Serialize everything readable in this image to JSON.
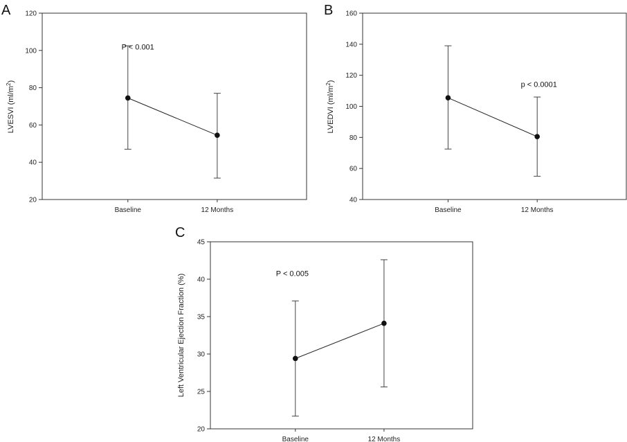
{
  "chart_data": [
    {
      "panel": "A",
      "type": "line",
      "categories": [
        "Baseline",
        "12 Months"
      ],
      "values": [
        74.5,
        54.5
      ],
      "error_low": [
        47,
        31.5
      ],
      "error_high": [
        102.5,
        77
      ],
      "ylabel": "LVESVI (ml/m",
      "ylabel_sup": "2",
      "ylabel_end": ")",
      "ylim": [
        20,
        120
      ],
      "yticks": [
        20,
        40,
        60,
        80,
        100,
        120
      ],
      "annotation": "P < 0.001",
      "annotation_at": [
        0.3,
        100.5
      ]
    },
    {
      "panel": "B",
      "type": "line",
      "categories": [
        "Baseline",
        "12 Months"
      ],
      "values": [
        105.5,
        80.5
      ],
      "error_low": [
        72.5,
        55
      ],
      "error_high": [
        139,
        106
      ],
      "ylabel": "LVEDVI (ml/m",
      "ylabel_sup": "2",
      "ylabel_end": ")",
      "ylim": [
        40,
        160
      ],
      "yticks": [
        40,
        60,
        80,
        100,
        120,
        140,
        160
      ],
      "annotation": "p < 0.0001",
      "annotation_at": [
        0.6,
        112.5
      ]
    },
    {
      "panel": "C",
      "type": "line",
      "categories": [
        "Baseline",
        "12 Months"
      ],
      "values": [
        29.4,
        34.1
      ],
      "error_low": [
        21.7,
        25.6
      ],
      "error_high": [
        37.1,
        42.6
      ],
      "ylabel": "Left Ventricular Ejection Fraction (%)",
      "ylabel_sup": "",
      "ylabel_end": "",
      "ylim": [
        20,
        45
      ],
      "yticks": [
        20,
        25,
        30,
        35,
        40,
        45
      ],
      "annotation": "P < 0.005",
      "annotation_at": [
        0.25,
        40.4
      ]
    }
  ]
}
